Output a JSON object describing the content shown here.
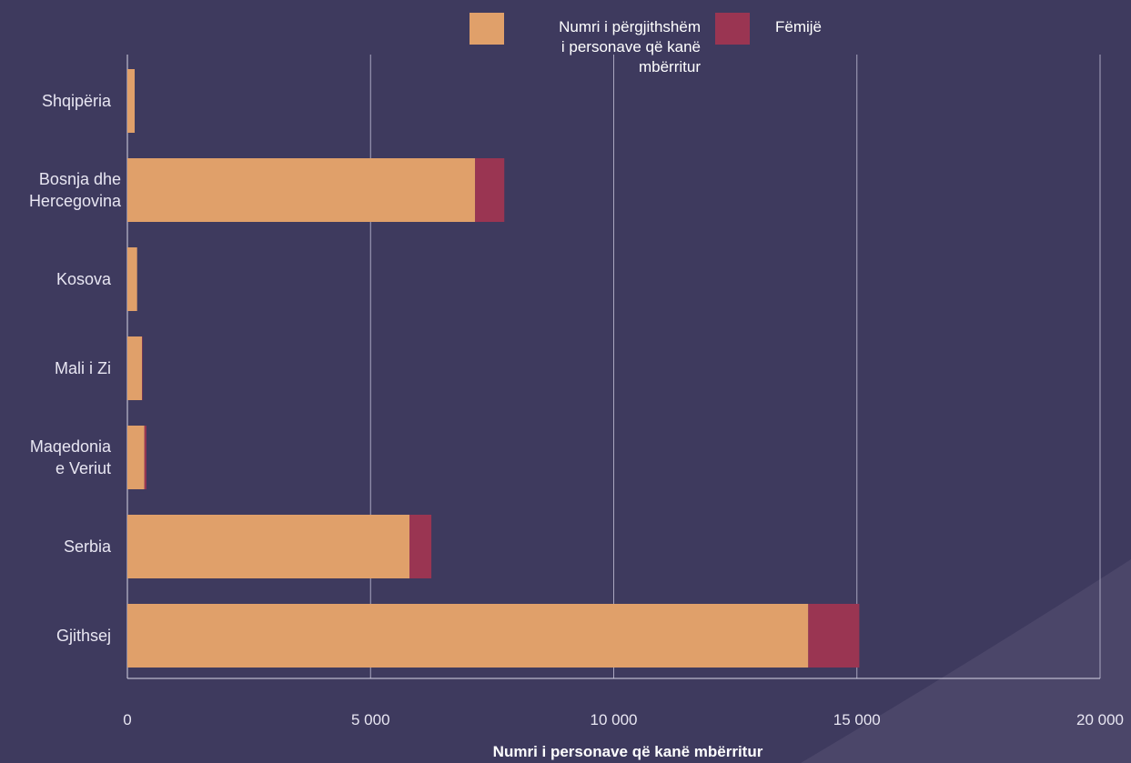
{
  "chart_data": {
    "type": "bar",
    "orientation": "horizontal",
    "stacked": true,
    "categories": [
      "Shqipëria",
      "Bosnja dhe Hercegovina",
      "Kosova",
      "Mali i Zi",
      "Maqedonia e Veriut",
      "Serbia",
      "Gjithsej"
    ],
    "category_lines": [
      [
        "Shqipëria"
      ],
      [
        "Bosnja dhe",
        "Hercegovina"
      ],
      [
        "Kosova"
      ],
      [
        "Mali i Zi"
      ],
      [
        "Maqedonia",
        "e Veriut"
      ],
      [
        "Serbia"
      ],
      [
        "Gjithsej"
      ]
    ],
    "series": [
      {
        "name": "Numri i përgjithshëm i personave që kanë mbërritur",
        "name_lines": [
          "Numri i përgjithshëm",
          "i personave që kanë",
          "mbërritur"
        ],
        "color": "#e0a06a",
        "values": [
          150,
          7150,
          200,
          300,
          350,
          5800,
          14000
        ]
      },
      {
        "name": "Fëmijë",
        "color": "#9a3552",
        "values": [
          0,
          600,
          0,
          10,
          40,
          450,
          1050
        ]
      }
    ],
    "xlabel": "Numri i personave që kanë  mbërritur",
    "xlim": [
      0,
      20000
    ],
    "xticks": [
      0,
      5000,
      10000,
      15000,
      20000
    ],
    "xtick_labels": [
      "0",
      "5 000",
      "10 000",
      "15 000",
      "20 000"
    ],
    "grid": true,
    "legend_position": "top"
  }
}
